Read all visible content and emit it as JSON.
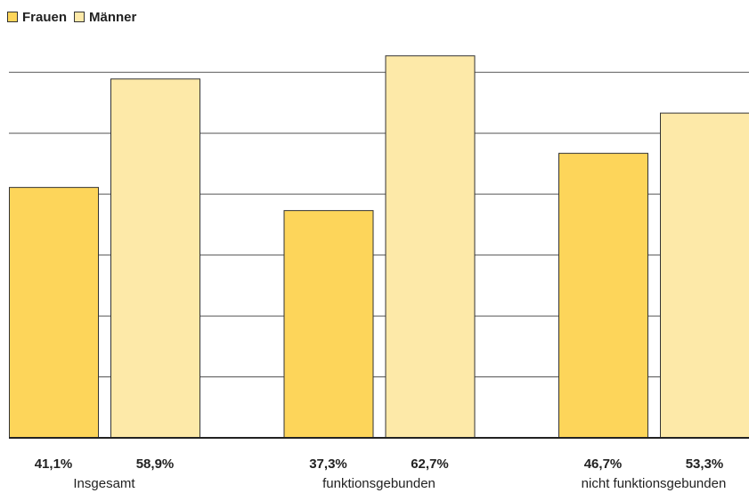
{
  "chart_data": {
    "type": "bar",
    "categories": [
      "Insgesamt",
      "funktionsgebunden",
      "nicht funktionsgebunden"
    ],
    "series": [
      {
        "name": "Frauen",
        "color": "#fdd55a",
        "values": [
          41.1,
          37.3,
          46.7
        ],
        "value_labels": [
          "41,1%",
          "37,3%",
          "46,7%"
        ]
      },
      {
        "name": "Männer",
        "color": "#fde9a8",
        "values": [
          58.9,
          62.7,
          53.3
        ],
        "value_labels": [
          "58,9%",
          "62,7%",
          "53,3%"
        ]
      }
    ],
    "ylim": [
      0,
      65
    ],
    "yticks": [
      0,
      10,
      20,
      30,
      40,
      50,
      60
    ],
    "grid": true,
    "tick_labels": false,
    "legend": "top-left"
  }
}
